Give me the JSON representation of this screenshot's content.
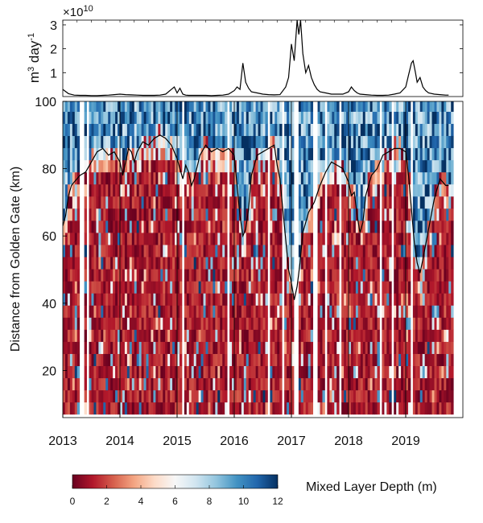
{
  "chart_data": [
    {
      "type": "line",
      "panel": "top",
      "ylabel_base": "m",
      "ylabel_sup1": "3",
      "ylabel_mid": " day",
      "ylabel_sup2": "-1",
      "exponent_prefix": "×10",
      "exponent_power": "10",
      "ylim": [
        0,
        3.2
      ],
      "yticks": [
        1,
        2,
        3
      ],
      "ytick_labels": [
        "1",
        "2",
        "3"
      ],
      "xlim": [
        2013,
        2020
      ],
      "series": [
        {
          "color": "#000000",
          "x": [
            2013.0,
            2013.1,
            2013.2,
            2013.3,
            2013.4,
            2013.5,
            2013.6,
            2013.7,
            2013.8,
            2013.9,
            2014.0,
            2014.1,
            2014.2,
            2014.3,
            2014.4,
            2014.5,
            2014.6,
            2014.7,
            2014.8,
            2014.9,
            2014.95,
            2015.0,
            2015.05,
            2015.1,
            2015.15,
            2015.2,
            2015.3,
            2015.4,
            2015.5,
            2015.6,
            2015.7,
            2015.8,
            2015.9,
            2016.0,
            2016.05,
            2016.1,
            2016.15,
            2016.2,
            2016.25,
            2016.3,
            2016.4,
            2016.5,
            2016.6,
            2016.7,
            2016.8,
            2016.9,
            2016.95,
            2017.0,
            2017.05,
            2017.1,
            2017.13,
            2017.16,
            2017.2,
            2017.25,
            2017.3,
            2017.35,
            2017.4,
            2017.45,
            2017.5,
            2017.6,
            2017.7,
            2017.8,
            2017.9,
            2018.0,
            2018.05,
            2018.1,
            2018.15,
            2018.2,
            2018.3,
            2018.4,
            2018.5,
            2018.6,
            2018.7,
            2018.8,
            2018.9,
            2019.0,
            2019.05,
            2019.1,
            2019.13,
            2019.17,
            2019.2,
            2019.25,
            2019.3,
            2019.35,
            2019.4,
            2019.5,
            2019.6,
            2019.7,
            2019.75
          ],
          "y": [
            0.3,
            0.12,
            0.06,
            0.05,
            0.05,
            0.04,
            0.04,
            0.05,
            0.06,
            0.08,
            0.1,
            0.08,
            0.07,
            0.06,
            0.05,
            0.05,
            0.05,
            0.06,
            0.1,
            0.3,
            0.4,
            0.15,
            0.35,
            0.1,
            0.06,
            0.05,
            0.05,
            0.05,
            0.05,
            0.04,
            0.05,
            0.06,
            0.1,
            0.25,
            0.4,
            0.3,
            1.4,
            0.6,
            0.35,
            0.2,
            0.15,
            0.1,
            0.08,
            0.07,
            0.08,
            0.4,
            0.8,
            2.2,
            1.5,
            3.2,
            2.6,
            3.2,
            1.8,
            1.0,
            1.3,
            0.8,
            0.5,
            0.3,
            0.2,
            0.15,
            0.1,
            0.1,
            0.1,
            0.2,
            0.4,
            0.25,
            0.15,
            0.1,
            0.08,
            0.06,
            0.05,
            0.05,
            0.06,
            0.1,
            0.15,
            0.4,
            0.9,
            1.4,
            1.5,
            1.0,
            0.6,
            0.8,
            0.4,
            0.25,
            0.15,
            0.1,
            0.08,
            0.06,
            0.06
          ]
        }
      ]
    },
    {
      "type": "heatmap",
      "panel": "bottom",
      "ylabel": "Distance from Golden Gate  (km)",
      "xlim": [
        2013,
        2020
      ],
      "ylim": [
        6,
        100
      ],
      "xticks": [
        2013,
        2014,
        2015,
        2016,
        2017,
        2018,
        2019
      ],
      "xtick_labels": [
        "2013",
        "2014",
        "2015",
        "2016",
        "2017",
        "2018",
        "2019"
      ],
      "yticks": [
        20,
        40,
        60,
        80,
        100
      ],
      "ytick_labels": [
        "20",
        "40",
        "60",
        "80",
        "100"
      ],
      "year_lines": [
        2014,
        2015,
        2016,
        2017,
        2018,
        2019
      ],
      "colorbar": {
        "label": "Mixed Layer Depth (m)",
        "range": [
          0,
          12
        ],
        "ticks": [
          0,
          2,
          4,
          6,
          8,
          10,
          12
        ],
        "tick_labels": [
          "0",
          "2",
          "4",
          "6",
          "8",
          "10",
          "12"
        ],
        "colors": [
          "#67001f",
          "#b2182b",
          "#d6604d",
          "#f4a582",
          "#fddbc7",
          "#f7f7f7",
          "#d1e5f0",
          "#92c5de",
          "#4393c3",
          "#2166ac",
          "#053061"
        ]
      },
      "data_gaps": [
        2013.33,
        2013.45,
        2015.1,
        2015.88,
        2016.62,
        2016.85,
        2017.08,
        2017.38,
        2017.42,
        2017.6,
        2017.85,
        2018.55,
        2018.78,
        2019.1
      ],
      "line_series": {
        "color": "#000000",
        "x": [
          2013.0,
          2013.05,
          2013.1,
          2013.15,
          2013.2,
          2013.3,
          2013.4,
          2013.5,
          2013.6,
          2013.7,
          2013.8,
          2013.9,
          2014.0,
          2014.05,
          2014.1,
          2014.15,
          2014.2,
          2014.25,
          2014.3,
          2014.4,
          2014.5,
          2014.6,
          2014.7,
          2014.8,
          2014.9,
          2015.0,
          2015.05,
          2015.1,
          2015.15,
          2015.2,
          2015.25,
          2015.3,
          2015.4,
          2015.5,
          2015.6,
          2015.7,
          2015.8,
          2015.9,
          2016.0,
          2016.05,
          2016.1,
          2016.15,
          2016.2,
          2016.25,
          2016.3,
          2016.4,
          2016.5,
          2016.6,
          2016.7,
          2016.75,
          2016.8,
          2016.85,
          2016.9,
          2016.95,
          2017.0,
          2017.05,
          2017.1,
          2017.15,
          2017.2,
          2017.3,
          2017.4,
          2017.5,
          2017.6,
          2017.7,
          2017.8,
          2017.9,
          2018.0,
          2018.05,
          2018.1,
          2018.15,
          2018.2,
          2018.25,
          2018.3,
          2018.4,
          2018.5,
          2018.6,
          2018.7,
          2018.8,
          2018.9,
          2019.0,
          2019.05,
          2019.1,
          2019.15,
          2019.2,
          2019.25,
          2019.3,
          2019.4,
          2019.5,
          2019.6,
          2019.7,
          2019.75
        ],
        "y": [
          63,
          66,
          72,
          75,
          76,
          78,
          79,
          82,
          85,
          86,
          84,
          85,
          82,
          78,
          82,
          86,
          85,
          82,
          85,
          88,
          87,
          89,
          90,
          89,
          87,
          83,
          80,
          77,
          81,
          79,
          75,
          77,
          84,
          87,
          85,
          86,
          85,
          86,
          84,
          75,
          66,
          60,
          62,
          68,
          78,
          84,
          85,
          86,
          87,
          81,
          77,
          68,
          59,
          50,
          46,
          41,
          45,
          52,
          61,
          67,
          70,
          75,
          79,
          82,
          81,
          80,
          76,
          72,
          73,
          66,
          61,
          64,
          72,
          78,
          80,
          84,
          85,
          86,
          86,
          85,
          78,
          68,
          58,
          52,
          49,
          53,
          62,
          71,
          77,
          75,
          75
        ]
      }
    }
  ]
}
